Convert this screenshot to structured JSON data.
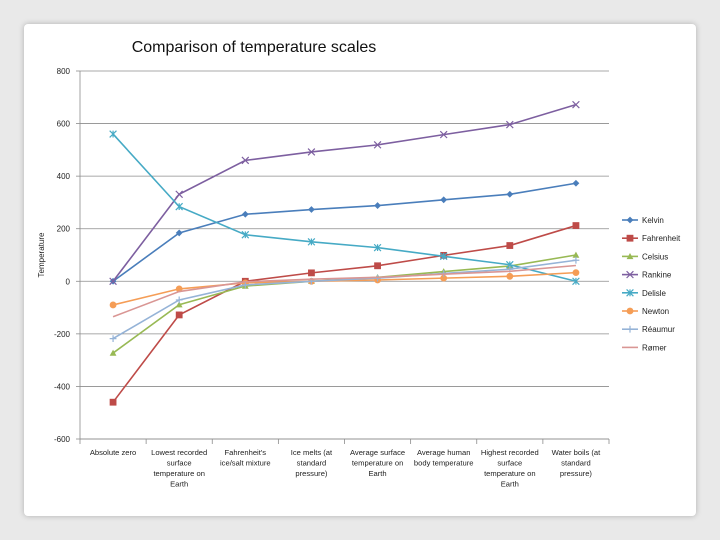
{
  "chart_data": {
    "type": "line",
    "title": "Comparison of temperature scales",
    "ylabel": "Temperature",
    "xlabel": "",
    "ylim": [
      -600,
      800
    ],
    "yticks": [
      800,
      600,
      400,
      200,
      0,
      -200,
      -400,
      -600
    ],
    "grid": "horizontal",
    "legend_position": "right",
    "categories": [
      "Absolute zero",
      "Lowest recorded surface temperature on Earth",
      "Fahrenheit's ice/salt mixture",
      "Ice melts (at standard pressure)",
      "Average surface temperature on Earth",
      "Average human body temperature",
      "Highest recorded surface temperature on Earth",
      "Water boils (at standard pressure)"
    ],
    "series": [
      {
        "name": "Kelvin",
        "color": "#4a7ebb",
        "marker": "diamond",
        "values": [
          0,
          184,
          255,
          273,
          288,
          310,
          331,
          373
        ]
      },
      {
        "name": "Fahrenheit",
        "color": "#be4b48",
        "marker": "square",
        "values": [
          -460,
          -128,
          0,
          32,
          59,
          98.6,
          136,
          212
        ]
      },
      {
        "name": "Celsius",
        "color": "#98b954",
        "marker": "triangle",
        "values": [
          -273,
          -89,
          -18,
          0,
          15,
          37,
          58,
          100
        ]
      },
      {
        "name": "Rankine",
        "color": "#7d5fa0",
        "marker": "x",
        "values": [
          0,
          331,
          460,
          492,
          519,
          558,
          596,
          672
        ]
      },
      {
        "name": "Delisle",
        "color": "#46aac5",
        "marker": "star",
        "values": [
          560,
          284,
          177,
          150,
          128,
          95,
          63,
          0
        ]
      },
      {
        "name": "Newton",
        "color": "#f59d56",
        "marker": "circle",
        "values": [
          -90,
          -29,
          -6,
          0,
          5,
          12,
          19,
          33
        ]
      },
      {
        "name": "Réaumur",
        "color": "#95b3d7",
        "marker": "plus",
        "values": [
          -218,
          -71,
          -14,
          0,
          12,
          30,
          46,
          80
        ]
      },
      {
        "name": "Rømer",
        "color": "#d99694",
        "marker": "none",
        "values": [
          -135,
          -39,
          -2,
          8,
          15,
          27,
          38,
          60
        ]
      }
    ]
  }
}
